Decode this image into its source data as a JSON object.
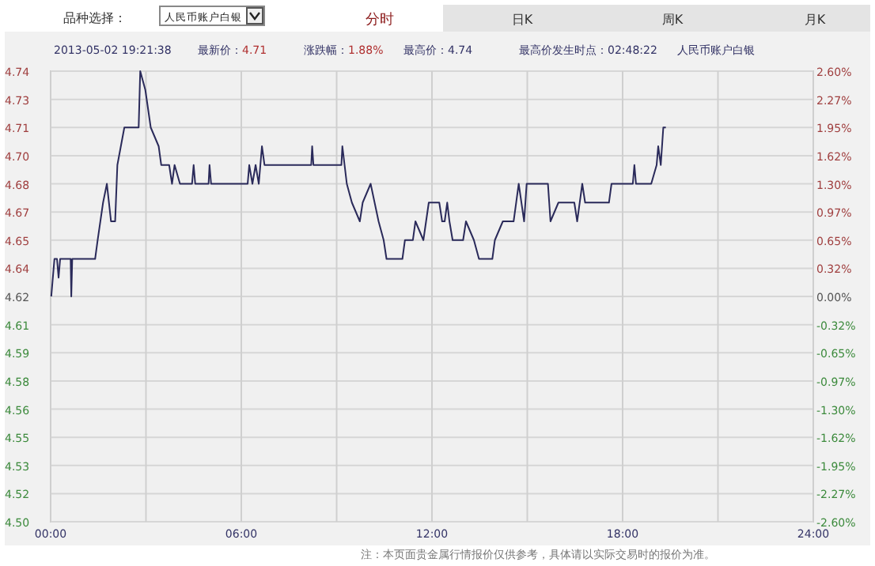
{
  "chart_data": {
    "type": "line",
    "annotations": [
      "品种选择：",
      "人民币账户白银",
      "分时",
      "日K",
      "周K",
      "月K",
      "2013-05-02 19:21:38",
      "最新价：",
      "4.71",
      "涨跌幅：",
      "1.88%",
      "最高价：",
      "4.74",
      "最高价发生时点：",
      "02:48:22",
      "人民币账户白银",
      "注：本页面贵金属行情报价仅供参考，具体请以实际交易时的报价为准。"
    ],
    "x": [
      0.02,
      0.12,
      0.2,
      0.25,
      0.3,
      0.63,
      0.65,
      0.68,
      1.4,
      1.48,
      1.65,
      1.77,
      1.9,
      2.03,
      2.1,
      2.32,
      2.77,
      2.82,
      2.98,
      3.15,
      3.4,
      3.48,
      3.73,
      3.82,
      3.9,
      4.07,
      4.45,
      4.5,
      4.55,
      4.97,
      5.0,
      5.05,
      6.2,
      6.25,
      6.35,
      6.45,
      6.55,
      6.65,
      6.73,
      8.2,
      8.23,
      8.27,
      9.15,
      9.18,
      9.32,
      9.48,
      9.73,
      9.82,
      10.07,
      10.32,
      10.48,
      10.57,
      11.07,
      11.15,
      11.4,
      11.48,
      11.73,
      11.9,
      12.23,
      12.32,
      12.4,
      12.48,
      12.55,
      12.65,
      12.98,
      13.07,
      13.32,
      13.48,
      13.9,
      13.98,
      14.23,
      14.57,
      14.65,
      14.73,
      14.9,
      14.98,
      15.65,
      15.73,
      15.98,
      16.48,
      16.57,
      16.73,
      16.82,
      17.57,
      17.65,
      18.32,
      18.37,
      18.42,
      18.9,
      19.07,
      19.12,
      19.2,
      19.28,
      19.36
    ],
    "series": [
      {
        "color": "#2a2a5a",
        "values": [
          4.62,
          4.64,
          4.64,
          4.63,
          4.64,
          4.64,
          4.62,
          4.64,
          4.64,
          4.65,
          4.67,
          4.68,
          4.66,
          4.66,
          4.69,
          4.71,
          4.71,
          4.74,
          4.73,
          4.71,
          4.7,
          4.69,
          4.69,
          4.68,
          4.69,
          4.68,
          4.68,
          4.69,
          4.68,
          4.68,
          4.69,
          4.68,
          4.68,
          4.69,
          4.68,
          4.69,
          4.68,
          4.7,
          4.69,
          4.69,
          4.7,
          4.69,
          4.69,
          4.7,
          4.68,
          4.67,
          4.66,
          4.67,
          4.68,
          4.66,
          4.65,
          4.64,
          4.64,
          4.65,
          4.65,
          4.66,
          4.65,
          4.67,
          4.67,
          4.66,
          4.66,
          4.67,
          4.66,
          4.65,
          4.65,
          4.66,
          4.65,
          4.64,
          4.64,
          4.65,
          4.66,
          4.66,
          4.67,
          4.68,
          4.66,
          4.68,
          4.68,
          4.66,
          4.67,
          4.67,
          4.66,
          4.68,
          4.67,
          4.67,
          4.68,
          4.68,
          4.69,
          4.68,
          4.68,
          4.69,
          4.7,
          4.69,
          4.71,
          4.71
        ]
      }
    ],
    "xlim": [
      0,
      24
    ],
    "xticks": [
      {
        "value": 0,
        "label": "00:00"
      },
      {
        "value": 3,
        "label": null
      },
      {
        "value": 6,
        "label": "06:00"
      },
      {
        "value": 9,
        "label": null
      },
      {
        "value": 12,
        "label": "12:00"
      },
      {
        "value": 15,
        "label": null
      },
      {
        "value": 18,
        "label": "18:00"
      },
      {
        "value": 21,
        "label": null
      },
      {
        "value": 24,
        "label": "24:00"
      }
    ],
    "ylim": [
      4.5,
      4.74
    ],
    "yticks": [
      {
        "value": 4.5,
        "label": "4.50"
      },
      {
        "value": 4.515,
        "label": "4.52"
      },
      {
        "value": 4.53,
        "label": "4.53"
      },
      {
        "value": 4.545,
        "label": "4.55"
      },
      {
        "value": 4.56,
        "label": "4.56"
      },
      {
        "value": 4.575,
        "label": "4.58"
      },
      {
        "value": 4.59,
        "label": "4.59"
      },
      {
        "value": 4.605,
        "label": "4.61"
      },
      {
        "value": 4.62,
        "label": "4.62"
      },
      {
        "value": 4.635,
        "label": "4.64"
      },
      {
        "value": 4.65,
        "label": "4.65"
      },
      {
        "value": 4.665,
        "label": "4.67"
      },
      {
        "value": 4.68,
        "label": "4.68"
      },
      {
        "value": 4.695,
        "label": "4.70"
      },
      {
        "value": 4.71,
        "label": "4.71"
      },
      {
        "value": 4.725,
        "label": "4.73"
      },
      {
        "value": 4.74,
        "label": "4.74"
      }
    ],
    "y2lim": [
      -2.6,
      2.6
    ],
    "y2ticks": [
      {
        "value": -2.6,
        "label": "-2.60%"
      },
      {
        "value": -2.275,
        "label": "-2.27%"
      },
      {
        "value": -1.95,
        "label": "-1.95%"
      },
      {
        "value": -1.625,
        "label": "-1.62%"
      },
      {
        "value": -1.3,
        "label": "-1.30%"
      },
      {
        "value": -0.975,
        "label": "-0.97%"
      },
      {
        "value": -0.65,
        "label": "-0.65%"
      },
      {
        "value": -0.325,
        "label": "-0.32%"
      },
      {
        "value": 0,
        "label": "0.00%"
      },
      {
        "value": 0.325,
        "label": "0.32%"
      },
      {
        "value": 0.65,
        "label": "0.65%"
      },
      {
        "value": 0.975,
        "label": "0.97%"
      },
      {
        "value": 1.3,
        "label": "1.30%"
      },
      {
        "value": 1.625,
        "label": "1.62%"
      },
      {
        "value": 1.95,
        "label": "1.95%"
      },
      {
        "value": 2.275,
        "label": "2.27%"
      },
      {
        "value": 2.6,
        "label": "2.60%"
      }
    ],
    "grid": true
  }
}
